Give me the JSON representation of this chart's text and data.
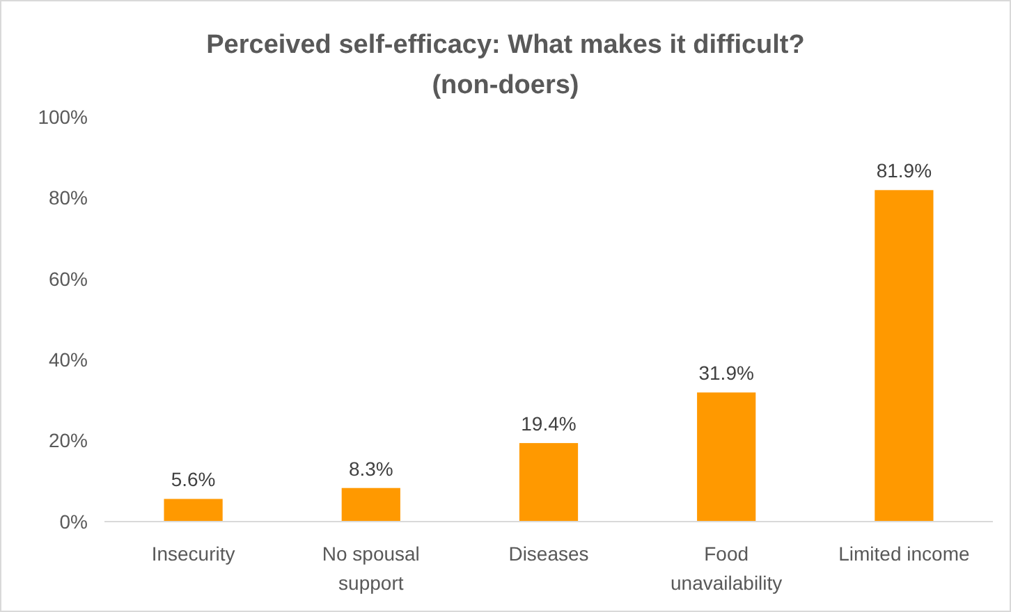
{
  "chart_data": {
    "type": "bar",
    "title": "Perceived self-efficacy: What makes it difficult?\n(non-doers)",
    "categories": [
      "Insecurity",
      "No spousal support",
      "Diseases",
      "Food unavailability",
      "Limited income"
    ],
    "values": [
      5.6,
      8.3,
      19.4,
      31.9,
      81.9
    ],
    "color": "#ff9900",
    "value_labels": [
      "5.6%",
      "8.3%",
      "19.4%",
      "31.9%",
      "81.9%"
    ],
    "ylim": [
      0,
      100
    ],
    "yticks": [
      {
        "value": 0,
        "label": "0%"
      },
      {
        "value": 20,
        "label": "20%"
      },
      {
        "value": 40,
        "label": "40%"
      },
      {
        "value": 60,
        "label": "60%"
      },
      {
        "value": 80,
        "label": "80%"
      },
      {
        "value": 100,
        "label": "100%"
      }
    ],
    "grid": false
  }
}
